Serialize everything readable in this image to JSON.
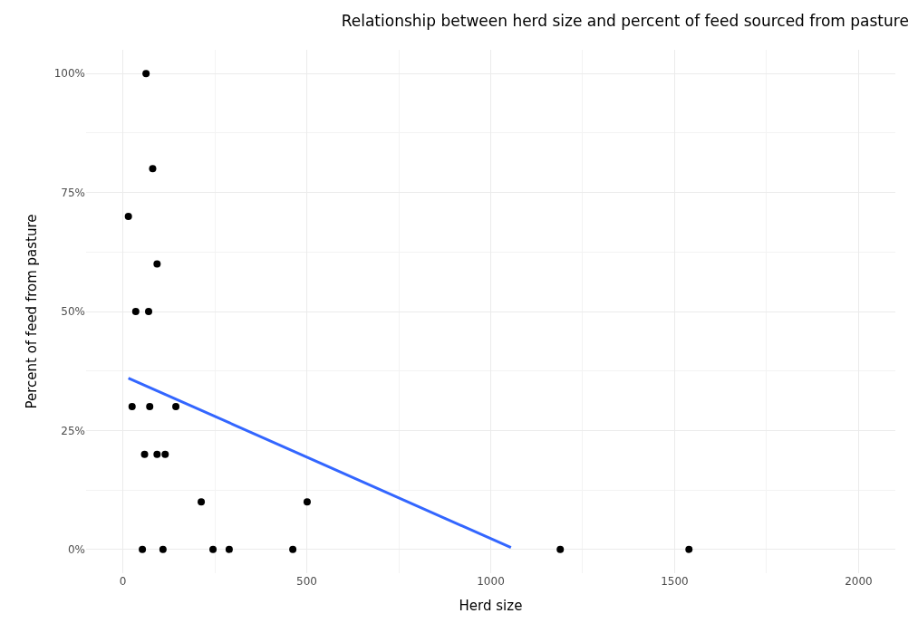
{
  "chart_data": {
    "type": "scatter",
    "title": "Relationship between herd size and percent of feed sourced from pasture",
    "xlabel": "Herd size",
    "ylabel": "Percent of feed from pasture",
    "series": [
      {
        "color": "#000000",
        "marker": "circle",
        "x": [
          63,
          81,
          15,
          93,
          35,
          70,
          25,
          73,
          144,
          59,
          93,
          115,
          213,
          501,
          53,
          109,
          245,
          289,
          462,
          1189,
          1539
        ],
        "values": [
          100,
          80,
          70,
          60,
          50,
          50,
          30,
          30,
          30,
          20,
          20,
          20,
          10,
          10,
          0,
          0,
          0,
          0,
          0,
          0,
          0
        ]
      },
      {
        "type": "line",
        "color": "#3366ff",
        "marker": "none",
        "x": [
          15,
          1055
        ],
        "values": [
          36,
          0.4
        ]
      }
    ],
    "xlim": [
      -100,
      2100
    ],
    "xticks": [
      0,
      500,
      1000,
      1500,
      2000
    ],
    "ylim": [
      -5,
      105
    ],
    "yticks": [
      {
        "value": 0,
        "label": "0%"
      },
      {
        "value": 25,
        "label": "25%"
      },
      {
        "value": 50,
        "label": "50%"
      },
      {
        "value": 75,
        "label": "75%"
      },
      {
        "value": 100,
        "label": "100%"
      }
    ],
    "grid": true
  }
}
